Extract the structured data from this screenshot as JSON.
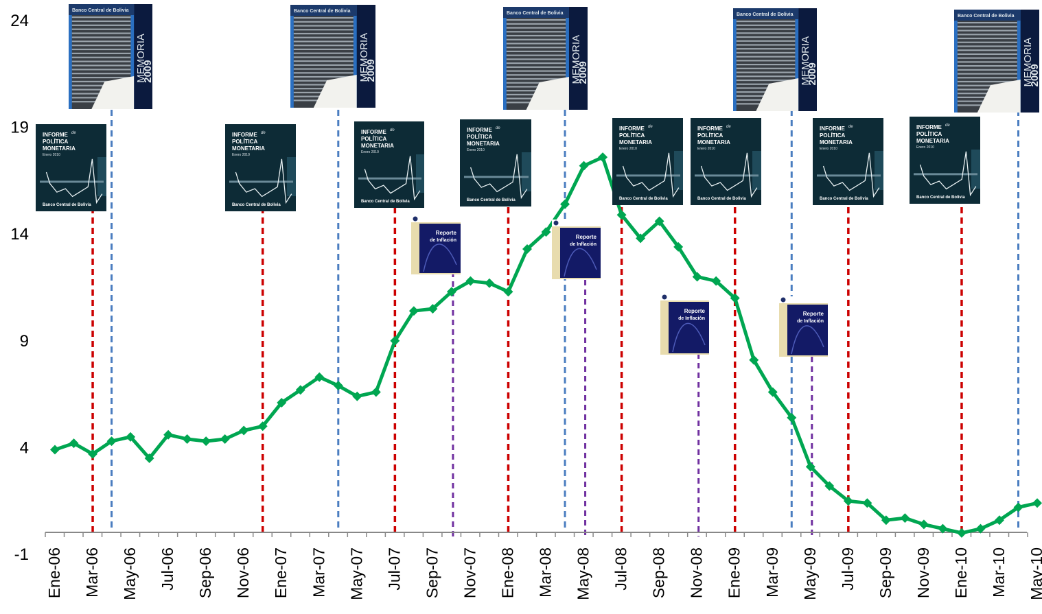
{
  "chart_data": {
    "type": "line",
    "title": "",
    "xlabel": "",
    "ylabel": "",
    "ylim": [
      -1,
      24
    ],
    "yticks": [
      -1,
      4,
      9,
      14,
      19,
      24
    ],
    "xticks": [
      "Ene-06",
      "Mar-06",
      "May-06",
      "Jul-06",
      "Sep-06",
      "Nov-06",
      "Ene-07",
      "Mar-07",
      "May-07",
      "Jul-07",
      "Sep-07",
      "Nov-07",
      "Ene-08",
      "Mar-08",
      "May-08",
      "Jul-08",
      "Sep-08",
      "Nov-08",
      "Ene-09",
      "Mar-09",
      "May-09",
      "Jul-09",
      "Sep-09",
      "Nov-09",
      "Ene-10",
      "Mar-10",
      "May-10"
    ],
    "months": [
      "Ene-06",
      "Feb-06",
      "Mar-06",
      "Abr-06",
      "May-06",
      "Jun-06",
      "Jul-06",
      "Ago-06",
      "Sep-06",
      "Oct-06",
      "Nov-06",
      "Dic-06",
      "Ene-07",
      "Feb-07",
      "Mar-07",
      "Abr-07",
      "May-07",
      "Jun-07",
      "Jul-07",
      "Ago-07",
      "Sep-07",
      "Oct-07",
      "Nov-07",
      "Dic-07",
      "Ene-08",
      "Feb-08",
      "Mar-08",
      "Abr-08",
      "May-08",
      "Jun-08",
      "Jul-08",
      "Ago-08",
      "Sep-08",
      "Oct-08",
      "Nov-08",
      "Dic-08",
      "Ene-09",
      "Feb-09",
      "Mar-09",
      "Abr-09",
      "May-09",
      "Jun-09",
      "Jul-09",
      "Ago-09",
      "Sep-09",
      "Oct-09",
      "Nov-09",
      "Dic-09",
      "Ene-10",
      "Feb-10",
      "Mar-10",
      "Abr-10",
      "May-10"
    ],
    "series": [
      {
        "color": "#00a651",
        "values": [
          3.9,
          4.2,
          3.7,
          4.3,
          4.5,
          3.5,
          4.6,
          4.4,
          4.3,
          4.4,
          4.8,
          5.0,
          6.1,
          6.7,
          7.3,
          6.9,
          6.4,
          6.6,
          9.0,
          10.4,
          10.5,
          11.3,
          11.8,
          11.7,
          11.3,
          13.3,
          14.1,
          15.4,
          17.2,
          17.6,
          14.9,
          13.8,
          14.6,
          13.4,
          12.0,
          11.8,
          11.0,
          8.1,
          6.6,
          5.4,
          3.1,
          2.2,
          1.5,
          1.4,
          0.6,
          0.7,
          0.4,
          0.2,
          0.0,
          0.2,
          0.6,
          1.2,
          1.4
        ]
      }
    ],
    "vlines": {
      "red": {
        "color": "#cc0000",
        "months": [
          "Mar-06",
          "Dic-06",
          "Jul-07",
          "Ene-08",
          "Jul-08",
          "Ene-09",
          "Jul-09",
          "Ene-10"
        ]
      },
      "blue": {
        "color": "#4a7dc0",
        "months": [
          "Abr-06",
          "Abr-07",
          "Abr-08",
          "Abr-09",
          "Abr-10"
        ]
      },
      "purple": {
        "color": "#7030a0",
        "months": [
          "Oct-07",
          "May-08",
          "Nov-08",
          "May-09"
        ]
      }
    },
    "grid": false,
    "legend": "none"
  },
  "images": {
    "memoria": {
      "bank": "Banco Central de Bolivia",
      "title": "MEMORIA",
      "year": "2009"
    },
    "ipm": {
      "line1": "INFORME",
      "de": "de",
      "line2": "POLÍTICA",
      "line3": "MONETARIA",
      "edition": "Enero 2010",
      "footer": "Banco Central de Bolivia"
    },
    "reporte": {
      "title": "Reporte",
      "subtitle": "de Inflación"
    }
  }
}
